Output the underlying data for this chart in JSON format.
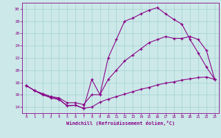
{
  "xlabel": "Windchill (Refroidissement éolien,°C)",
  "xlim": [
    -0.5,
    23.5
  ],
  "ylim": [
    13.0,
    31.0
  ],
  "xticks": [
    0,
    1,
    2,
    3,
    4,
    5,
    6,
    7,
    8,
    9,
    10,
    11,
    12,
    13,
    14,
    15,
    16,
    17,
    18,
    19,
    20,
    21,
    22,
    23
  ],
  "yticks": [
    14,
    16,
    18,
    20,
    22,
    24,
    26,
    28,
    30
  ],
  "bg_color": "#cce8e8",
  "line_color": "#880088",
  "line1_x": [
    0,
    1,
    2,
    3,
    4,
    5,
    6,
    7,
    8,
    9,
    10,
    11,
    12,
    13,
    14,
    15,
    16,
    17,
    18,
    19,
    20,
    21,
    22,
    23
  ],
  "line1_y": [
    17.5,
    16.7,
    16.0,
    15.7,
    15.3,
    14.2,
    14.3,
    13.8,
    18.5,
    16.0,
    22.0,
    25.0,
    28.0,
    28.5,
    29.2,
    29.8,
    30.2,
    29.2,
    28.3,
    27.5,
    25.0,
    22.8,
    20.5,
    18.5
  ],
  "line2_x": [
    0,
    1,
    2,
    3,
    4,
    5,
    6,
    7,
    8,
    9,
    10,
    11,
    12,
    13,
    14,
    15,
    16,
    17,
    18,
    19,
    20,
    21,
    22,
    23
  ],
  "line2_y": [
    17.5,
    16.7,
    16.0,
    15.5,
    15.2,
    14.2,
    14.3,
    13.8,
    14.0,
    14.8,
    15.3,
    15.7,
    16.1,
    16.5,
    16.9,
    17.2,
    17.6,
    17.9,
    18.1,
    18.4,
    18.6,
    18.8,
    18.9,
    18.5
  ],
  "line3_x": [
    0,
    1,
    2,
    3,
    4,
    5,
    6,
    7,
    8,
    9,
    10,
    11,
    12,
    13,
    14,
    15,
    16,
    17,
    18,
    19,
    20,
    21,
    22,
    23
  ],
  "line3_y": [
    17.5,
    16.7,
    16.2,
    15.7,
    15.5,
    14.7,
    14.7,
    14.4,
    16.0,
    16.0,
    18.5,
    20.0,
    21.5,
    22.5,
    23.5,
    24.5,
    25.0,
    25.5,
    25.2,
    25.2,
    25.5,
    25.0,
    23.2,
    18.5
  ]
}
